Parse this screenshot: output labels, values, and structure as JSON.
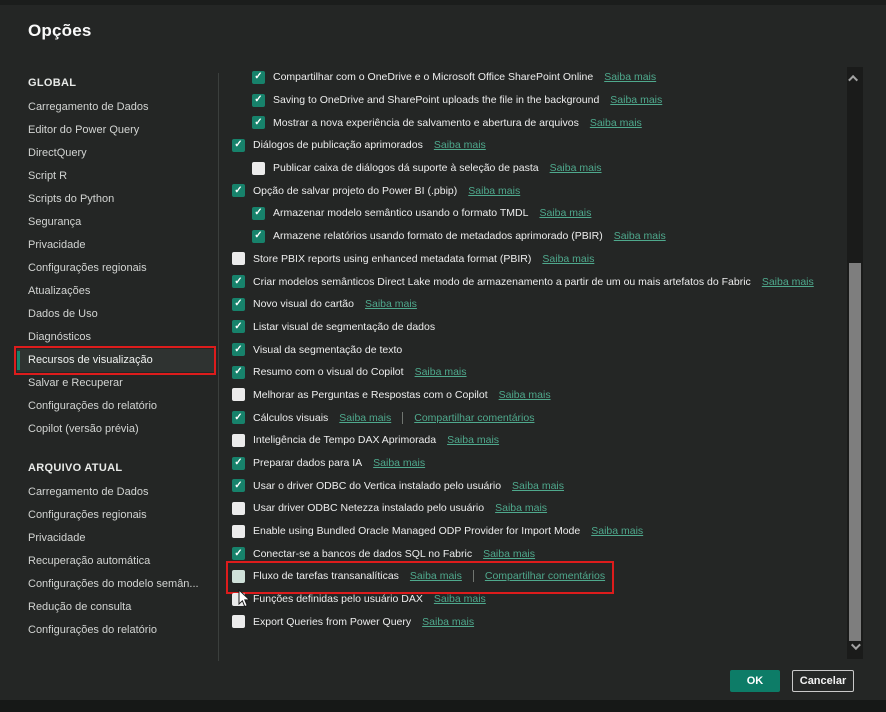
{
  "window": {
    "title": "Opções",
    "close_glyph": "×"
  },
  "colors": {
    "accent": "#17826b",
    "link": "#4fa98d",
    "annotation": "#dd1c1c",
    "ok_button": "#0d7c67",
    "dialog_bg": "#242625"
  },
  "sidebar": {
    "sections": [
      {
        "label": "GLOBAL",
        "items": [
          {
            "label": "Carregamento de Dados"
          },
          {
            "label": "Editor do Power Query"
          },
          {
            "label": "DirectQuery"
          },
          {
            "label": "Script R"
          },
          {
            "label": "Scripts do Python"
          },
          {
            "label": "Segurança"
          },
          {
            "label": "Privacidade"
          },
          {
            "label": "Configurações regionais"
          },
          {
            "label": "Atualizações"
          },
          {
            "label": "Dados de Uso"
          },
          {
            "label": "Diagnósticos"
          },
          {
            "label": "Recursos de visualização",
            "selected": true,
            "annotated": true
          },
          {
            "label": "Salvar e Recuperar"
          },
          {
            "label": "Configurações do relatório"
          },
          {
            "label": "Copilot (versão prévia)"
          }
        ]
      },
      {
        "label": "ARQUIVO ATUAL",
        "items": [
          {
            "label": "Carregamento de Dados"
          },
          {
            "label": "Configurações regionais"
          },
          {
            "label": "Privacidade"
          },
          {
            "label": "Recuperação automática"
          },
          {
            "label": "Configurações do modelo semân..."
          },
          {
            "label": "Redução de consulta"
          },
          {
            "label": "Configurações do relatório"
          }
        ]
      }
    ]
  },
  "options": [
    {
      "checked": true,
      "indent": 1,
      "label": "Compartilhar com o OneDrive e o Microsoft Office SharePoint Online",
      "links": [
        {
          "name": "saiba-mais-link",
          "label": "Saiba mais"
        }
      ]
    },
    {
      "checked": true,
      "indent": 1,
      "label": "Saving to OneDrive and SharePoint uploads the file in the background",
      "links": [
        {
          "name": "saiba-mais-link",
          "label": "Saiba mais"
        }
      ]
    },
    {
      "checked": true,
      "indent": 1,
      "label": "Mostrar a nova experiência de salvamento e abertura de arquivos",
      "links": [
        {
          "name": "saiba-mais-link",
          "label": "Saiba mais"
        }
      ]
    },
    {
      "checked": true,
      "indent": 0,
      "label": "Diálogos de publicação aprimorados",
      "links": [
        {
          "name": "saiba-mais-link",
          "label": "Saiba mais"
        }
      ]
    },
    {
      "checked": false,
      "indent": 1,
      "label": "Publicar caixa de diálogos dá suporte à seleção de pasta",
      "links": [
        {
          "name": "saiba-mais-link",
          "label": "Saiba mais"
        }
      ]
    },
    {
      "checked": true,
      "indent": 0,
      "label": "Opção de salvar projeto do Power BI (.pbip)",
      "links": [
        {
          "name": "saiba-mais-link",
          "label": "Saiba mais"
        }
      ]
    },
    {
      "checked": true,
      "indent": 1,
      "label": "Armazenar modelo semântico usando o formato TMDL",
      "links": [
        {
          "name": "saiba-mais-link",
          "label": "Saiba mais"
        }
      ]
    },
    {
      "checked": true,
      "indent": 1,
      "label": "Armazene relatórios usando formato de metadados aprimorado (PBIR)",
      "links": [
        {
          "name": "saiba-mais-link",
          "label": "Saiba mais"
        }
      ]
    },
    {
      "checked": false,
      "indent": 0,
      "label": "Store PBIX reports using enhanced metadata format (PBIR)",
      "links": [
        {
          "name": "saiba-mais-link",
          "label": "Saiba mais"
        }
      ]
    },
    {
      "checked": true,
      "indent": 0,
      "label": "Criar modelos semânticos Direct Lake modo de armazenamento a partir de um ou mais artefatos do Fabric",
      "links": [
        {
          "name": "saiba-mais-link",
          "label": "Saiba mais"
        }
      ]
    },
    {
      "checked": true,
      "indent": 0,
      "label": "Novo visual do cartão",
      "links": [
        {
          "name": "saiba-mais-link",
          "label": "Saiba mais"
        }
      ]
    },
    {
      "checked": true,
      "indent": 0,
      "label": "Listar visual de segmentação de dados",
      "links": []
    },
    {
      "checked": true,
      "indent": 0,
      "label": "Visual da segmentação de texto",
      "links": []
    },
    {
      "checked": true,
      "indent": 0,
      "label": "Resumo com o visual do Copilot",
      "links": [
        {
          "name": "saiba-mais-link",
          "label": "Saiba mais"
        }
      ]
    },
    {
      "checked": false,
      "indent": 0,
      "label": "Melhorar as Perguntas e Respostas com o Copilot",
      "links": [
        {
          "name": "saiba-mais-link",
          "label": "Saiba mais"
        }
      ]
    },
    {
      "checked": true,
      "indent": 0,
      "label": "Cálculos visuais",
      "links": [
        {
          "name": "saiba-mais-link",
          "label": "Saiba mais"
        },
        {
          "name": "compartilhar-comentarios-link",
          "label": "Compartilhar comentários"
        }
      ]
    },
    {
      "checked": false,
      "indent": 0,
      "label": "Inteligência de Tempo DAX Aprimorada",
      "links": [
        {
          "name": "saiba-mais-link",
          "label": "Saiba mais"
        }
      ]
    },
    {
      "checked": true,
      "indent": 0,
      "label": "Preparar dados para IA",
      "links": [
        {
          "name": "saiba-mais-link",
          "label": "Saiba mais"
        }
      ]
    },
    {
      "checked": true,
      "indent": 0,
      "label": "Usar o driver ODBC do Vertica instalado pelo usuário",
      "links": [
        {
          "name": "saiba-mais-link",
          "label": "Saiba mais"
        }
      ]
    },
    {
      "checked": false,
      "indent": 0,
      "label": "Usar driver ODBC Netezza instalado pelo usuário",
      "links": [
        {
          "name": "saiba-mais-link",
          "label": "Saiba mais"
        }
      ]
    },
    {
      "checked": false,
      "indent": 0,
      "label": "Enable using Bundled Oracle Managed ODP Provider for Import Mode",
      "links": [
        {
          "name": "saiba-mais-link",
          "label": "Saiba mais"
        }
      ]
    },
    {
      "checked": true,
      "indent": 0,
      "label": "Conectar-se a bancos de dados SQL no Fabric",
      "links": [
        {
          "name": "saiba-mais-link",
          "label": "Saiba mais"
        }
      ]
    },
    {
      "checked": false,
      "indent": 0,
      "label": "Fluxo de tarefas transanalíticas",
      "annotated": true,
      "hovered": true,
      "links": [
        {
          "name": "saiba-mais-link",
          "label": "Saiba mais"
        },
        {
          "name": "compartilhar-comentarios-link",
          "label": "Compartilhar comentários"
        }
      ]
    },
    {
      "checked": false,
      "indent": 0,
      "label": "Funções definidas pelo usuário DAX",
      "links": [
        {
          "name": "saiba-mais-link",
          "label": "Saiba mais"
        }
      ]
    },
    {
      "checked": false,
      "indent": 0,
      "label": "Export Queries from Power Query",
      "links": [
        {
          "name": "saiba-mais-link",
          "label": "Saiba mais"
        }
      ]
    }
  ],
  "footer": {
    "ok_label": "OK",
    "cancel_label": "Cancelar"
  }
}
